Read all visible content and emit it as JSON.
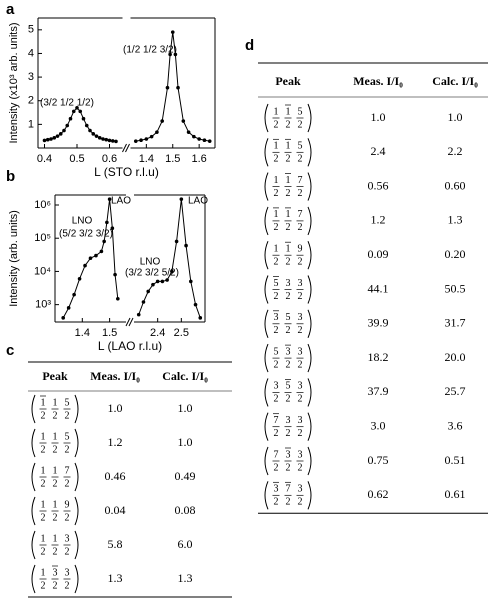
{
  "chart_data": [
    {
      "type": "scatter",
      "label": "a",
      "ylabel": "Intensity (x10³ arb. units)",
      "xlabel": "L (STO r.l.u)",
      "ylim": [
        0,
        5.5
      ],
      "yticks": [
        1,
        2,
        3,
        4,
        5
      ],
      "ylog": false,
      "color": "#000000",
      "segments": [
        {
          "xlim": [
            0.38,
            0.64
          ],
          "xticks": [
            0.4,
            0.5,
            0.6
          ],
          "x": [
            0.4,
            0.41,
            0.42,
            0.43,
            0.44,
            0.45,
            0.46,
            0.47,
            0.48,
            0.49,
            0.5,
            0.51,
            0.52,
            0.53,
            0.54,
            0.55,
            0.56,
            0.57,
            0.58,
            0.59,
            0.6,
            0.61,
            0.62
          ],
          "values": [
            0.32,
            0.35,
            0.38,
            0.43,
            0.5,
            0.6,
            0.74,
            0.95,
            1.24,
            1.55,
            1.7,
            1.55,
            1.24,
            0.95,
            0.74,
            0.6,
            0.5,
            0.43,
            0.38,
            0.35,
            0.32,
            0.3,
            0.28
          ]
        },
        {
          "xlim": [
            1.34,
            1.66
          ],
          "xticks": [
            1.4,
            1.5,
            1.6
          ],
          "x": [
            1.36,
            1.38,
            1.4,
            1.42,
            1.44,
            1.46,
            1.48,
            1.49,
            1.5,
            1.51,
            1.52,
            1.54,
            1.56,
            1.58,
            1.6,
            1.62,
            1.64
          ],
          "values": [
            0.29,
            0.33,
            0.38,
            0.48,
            0.67,
            1.14,
            2.55,
            3.96,
            4.9,
            3.96,
            2.55,
            1.14,
            0.67,
            0.48,
            0.38,
            0.33,
            0.29
          ]
        }
      ],
      "annotations": [
        "(3/2 1/2 1/2)",
        "(1/2 1/2 3/2)"
      ]
    },
    {
      "type": "scatter",
      "label": "b",
      "ylabel": "Intensity (arb. units)",
      "xlabel": "L (LAO r.l.u)",
      "ylim": [
        300,
        2000000
      ],
      "ylog": true,
      "color": "#000000",
      "yticks": [
        {
          "value": 1000,
          "label": "10³"
        },
        {
          "value": 10000,
          "label": "10⁴"
        },
        {
          "value": 100000,
          "label": "10⁵"
        },
        {
          "value": 1000000,
          "label": "10⁶"
        }
      ],
      "segments": [
        {
          "xlim": [
            1.3,
            1.56
          ],
          "xticks": [
            1.4,
            1.5
          ],
          "x": [
            1.33,
            1.35,
            1.37,
            1.39,
            1.41,
            1.43,
            1.45,
            1.47,
            1.48,
            1.49,
            1.5,
            1.51,
            1.52,
            1.53
          ],
          "values": [
            400,
            800,
            2000,
            6000,
            15000,
            25000,
            30000,
            40000,
            80000,
            300000,
            1500000,
            200000,
            8000,
            1500
          ]
        },
        {
          "xlim": [
            2.3,
            2.6
          ],
          "xticks": [
            2.4,
            2.5
          ],
          "x": [
            2.32,
            2.34,
            2.36,
            2.38,
            2.4,
            2.42,
            2.44,
            2.46,
            2.48,
            2.5,
            2.52,
            2.54,
            2.56,
            2.58
          ],
          "values": [
            500,
            1200,
            2500,
            4000,
            5000,
            5000,
            5500,
            10000,
            80000,
            1500000,
            60000,
            5000,
            1000,
            400
          ]
        }
      ],
      "annotations": [
        "LAO",
        "LAO",
        "LNO",
        "(5/2 3/2 3/2)",
        "LNO",
        "(3/2 3/2 5/2)"
      ]
    }
  ],
  "tables": [
    {
      "label": "c",
      "header": [
        "Peak",
        "Meas. I/I₀",
        "Calc. I/I₀"
      ],
      "rows": [
        {
          "peak": [
            {
              "num": "1",
              "den": "2",
              "bar": true
            },
            {
              "num": "1",
              "den": "2",
              "bar": false
            },
            {
              "num": "5",
              "den": "2",
              "bar": false
            }
          ],
          "meas": "1.0",
          "calc": "1.0"
        },
        {
          "peak": [
            {
              "num": "1",
              "den": "2",
              "bar": false
            },
            {
              "num": "1",
              "den": "2",
              "bar": false
            },
            {
              "num": "5",
              "den": "2",
              "bar": false
            }
          ],
          "meas": "1.2",
          "calc": "1.0"
        },
        {
          "peak": [
            {
              "num": "1",
              "den": "2",
              "bar": false
            },
            {
              "num": "1",
              "den": "2",
              "bar": false
            },
            {
              "num": "7",
              "den": "2",
              "bar": false
            }
          ],
          "meas": "0.46",
          "calc": "0.49"
        },
        {
          "peak": [
            {
              "num": "1",
              "den": "2",
              "bar": false
            },
            {
              "num": "1",
              "den": "2",
              "bar": false
            },
            {
              "num": "9",
              "den": "2",
              "bar": false
            }
          ],
          "meas": "0.04",
          "calc": "0.08"
        },
        {
          "peak": [
            {
              "num": "1",
              "den": "2",
              "bar": false
            },
            {
              "num": "1",
              "den": "2",
              "bar": false
            },
            {
              "num": "3",
              "den": "2",
              "bar": false
            }
          ],
          "meas": "5.8",
          "calc": "6.0"
        },
        {
          "peak": [
            {
              "num": "1",
              "den": "2",
              "bar": false
            },
            {
              "num": "3",
              "den": "2",
              "bar": true
            },
            {
              "num": "3",
              "den": "2",
              "bar": false
            }
          ],
          "meas": "1.3",
          "calc": "1.3"
        }
      ]
    },
    {
      "label": "d",
      "header": [
        "Peak",
        "Meas. I/I₀",
        "Calc. I/I₀"
      ],
      "rows": [
        {
          "peak": [
            {
              "num": "1",
              "den": "2",
              "bar": false
            },
            {
              "num": "1",
              "den": "2",
              "bar": true
            },
            {
              "num": "5",
              "den": "2",
              "bar": false
            }
          ],
          "meas": "1.0",
          "calc": "1.0"
        },
        {
          "peak": [
            {
              "num": "1",
              "den": "2",
              "bar": true
            },
            {
              "num": "1",
              "den": "2",
              "bar": true
            },
            {
              "num": "5",
              "den": "2",
              "bar": false
            }
          ],
          "meas": "2.4",
          "calc": "2.2"
        },
        {
          "peak": [
            {
              "num": "1",
              "den": "2",
              "bar": false
            },
            {
              "num": "1",
              "den": "2",
              "bar": true
            },
            {
              "num": "7",
              "den": "2",
              "bar": false
            }
          ],
          "meas": "0.56",
          "calc": "0.60"
        },
        {
          "peak": [
            {
              "num": "1",
              "den": "2",
              "bar": true
            },
            {
              "num": "1",
              "den": "2",
              "bar": true
            },
            {
              "num": "7",
              "den": "2",
              "bar": false
            }
          ],
          "meas": "1.2",
          "calc": "1.3"
        },
        {
          "peak": [
            {
              "num": "1",
              "den": "2",
              "bar": false
            },
            {
              "num": "1",
              "den": "2",
              "bar": true
            },
            {
              "num": "9",
              "den": "2",
              "bar": false
            }
          ],
          "meas": "0.09",
          "calc": "0.20"
        },
        {
          "peak": [
            {
              "num": "5",
              "den": "2",
              "bar": true
            },
            {
              "num": "3",
              "den": "2",
              "bar": false
            },
            {
              "num": "3",
              "den": "2",
              "bar": false
            }
          ],
          "meas": "44.1",
          "calc": "50.5"
        },
        {
          "peak": [
            {
              "num": "3",
              "den": "2",
              "bar": true
            },
            {
              "num": "5",
              "den": "2",
              "bar": false
            },
            {
              "num": "3",
              "den": "2",
              "bar": false
            }
          ],
          "meas": "39.9",
          "calc": "31.7"
        },
        {
          "peak": [
            {
              "num": "5",
              "den": "2",
              "bar": false
            },
            {
              "num": "3",
              "den": "2",
              "bar": true
            },
            {
              "num": "3",
              "den": "2",
              "bar": false
            }
          ],
          "meas": "18.2",
          "calc": "20.0"
        },
        {
          "peak": [
            {
              "num": "3",
              "den": "2",
              "bar": false
            },
            {
              "num": "5",
              "den": "2",
              "bar": true
            },
            {
              "num": "3",
              "den": "2",
              "bar": false
            }
          ],
          "meas": "37.9",
          "calc": "25.7"
        },
        {
          "peak": [
            {
              "num": "7",
              "den": "2",
              "bar": true
            },
            {
              "num": "3",
              "den": "2",
              "bar": false
            },
            {
              "num": "3",
              "den": "2",
              "bar": false
            }
          ],
          "meas": "3.0",
          "calc": "3.6"
        },
        {
          "peak": [
            {
              "num": "7",
              "den": "2",
              "bar": false
            },
            {
              "num": "3",
              "den": "2",
              "bar": true
            },
            {
              "num": "3",
              "den": "2",
              "bar": false
            }
          ],
          "meas": "0.75",
          "calc": "0.51"
        },
        {
          "peak": [
            {
              "num": "3",
              "den": "2",
              "bar": true
            },
            {
              "num": "7",
              "den": "2",
              "bar": true
            },
            {
              "num": "3",
              "den": "2",
              "bar": false
            }
          ],
          "meas": "0.62",
          "calc": "0.61"
        }
      ]
    }
  ]
}
